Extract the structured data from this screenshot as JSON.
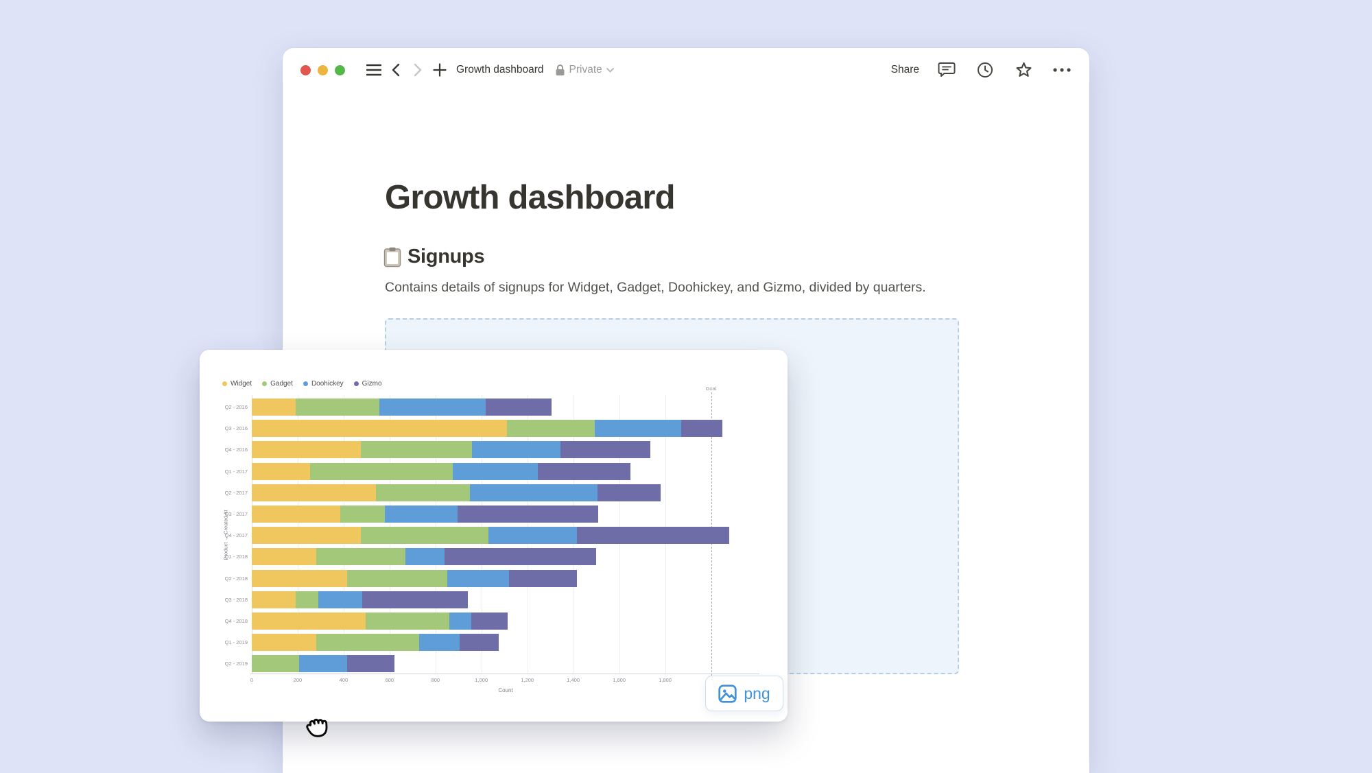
{
  "toolbar": {
    "title": "Growth dashboard",
    "privacy_label": "Private",
    "share_label": "Share"
  },
  "page": {
    "title": "Growth dashboard",
    "section_heading": "Signups",
    "section_description": "Contains details of signups for Widget, Gadget, Doohickey, and Gizmo, divided by quarters."
  },
  "drag_card": {
    "badge_label": "png"
  },
  "chart_data": {
    "type": "bar",
    "stacked": true,
    "orientation": "horizontal",
    "title": "",
    "xlabel": "Count",
    "ylabel": "Product → Created At",
    "xlim": [
      0,
      2100
    ],
    "xticks": [
      0,
      200,
      400,
      600,
      800,
      1000,
      1200,
      1400,
      1600,
      1800
    ],
    "xtick_labels": [
      "0",
      "200",
      "400",
      "600",
      "800",
      "1,000",
      "1,200",
      "1,400",
      "1,600",
      "1,800"
    ],
    "grid": true,
    "legend_position": "top-left",
    "goal_line": {
      "label": "Goal",
      "value": 2000
    },
    "categories": [
      "Q2 - 2016",
      "Q3 - 2016",
      "Q4 - 2016",
      "Q1 - 2017",
      "Q2 - 2017",
      "Q3 - 2017",
      "Q4 - 2017",
      "Q1 - 2018",
      "Q2 - 2018",
      "Q3 - 2018",
      "Q4 - 2018",
      "Q1 - 2019",
      "Q2 - 2019"
    ],
    "series": [
      {
        "name": "Widget",
        "color": "#EFC75E",
        "values": [
          190,
          1110,
          475,
          255,
          540,
          385,
          475,
          280,
          415,
          190,
          495,
          280,
          0
        ]
      },
      {
        "name": "Gadget",
        "color": "#A3C87A",
        "values": [
          365,
          385,
          485,
          620,
          410,
          195,
          555,
          390,
          435,
          100,
          365,
          450,
          205
        ]
      },
      {
        "name": "Doohickey",
        "color": "#5F9DD9",
        "values": [
          465,
          375,
          385,
          370,
          555,
          315,
          385,
          170,
          270,
          190,
          95,
          175,
          210
        ]
      },
      {
        "name": "Gizmo",
        "color": "#6F6DA8",
        "values": [
          285,
          180,
          390,
          405,
          275,
          615,
          665,
          660,
          295,
          460,
          160,
          170,
          205
        ]
      }
    ]
  }
}
